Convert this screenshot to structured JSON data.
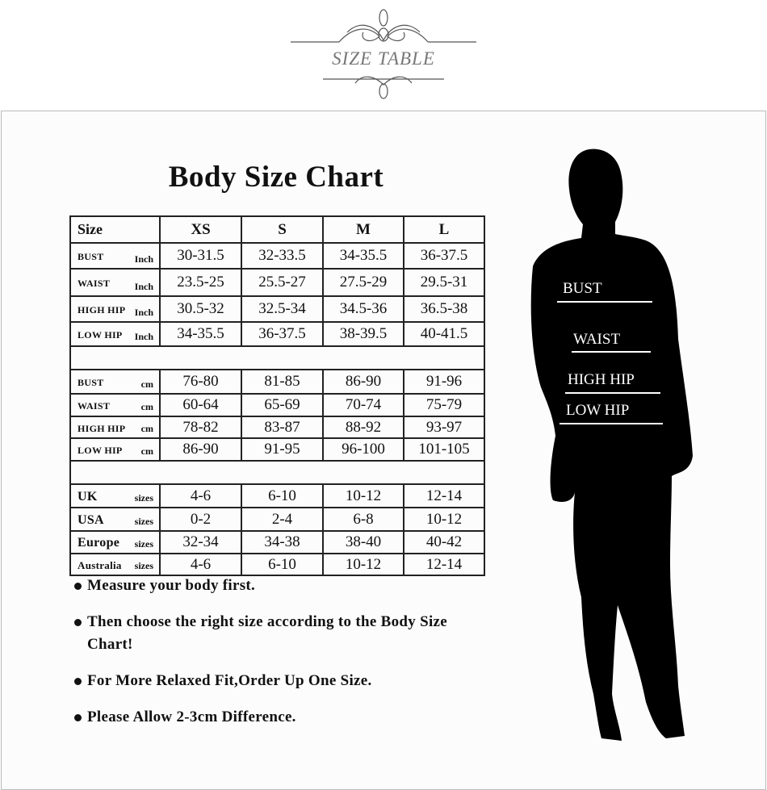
{
  "header": {
    "title": "SIZE TABLE"
  },
  "chart": {
    "title": "Body Size Chart",
    "columns": [
      "Size",
      "XS",
      "S",
      "M",
      "L"
    ],
    "groups": [
      {
        "rows": [
          {
            "label": "BUST",
            "unit": "Inch",
            "values": [
              "30-31.5",
              "32-33.5",
              "34-35.5",
              "36-37.5"
            ]
          },
          {
            "label": "WAIST",
            "unit": "Inch",
            "values": [
              "23.5-25",
              "25.5-27",
              "27.5-29",
              "29.5-31"
            ]
          },
          {
            "label": "HIGH HIP",
            "unit": "Inch",
            "values": [
              "30.5-32",
              "32.5-34",
              "34.5-36",
              "36.5-38"
            ]
          },
          {
            "label": "LOW HIP",
            "unit": "Inch",
            "values": [
              "34-35.5",
              "36-37.5",
              "38-39.5",
              "40-41.5"
            ]
          }
        ]
      },
      {
        "rows": [
          {
            "label": "BUST",
            "unit": "cm",
            "values": [
              "76-80",
              "81-85",
              "86-90",
              "91-96"
            ]
          },
          {
            "label": "WAIST",
            "unit": "cm",
            "values": [
              "60-64",
              "65-69",
              "70-74",
              "75-79"
            ]
          },
          {
            "label": "HIGH HIP",
            "unit": "cm",
            "values": [
              "78-82",
              "83-87",
              "88-92",
              "93-97"
            ]
          },
          {
            "label": "LOW HIP",
            "unit": "cm",
            "values": [
              "86-90",
              "91-95",
              "96-100",
              "101-105"
            ]
          }
        ]
      },
      {
        "big": true,
        "rows": [
          {
            "label": "UK",
            "unit": "sizes",
            "values": [
              "4-6",
              "6-10",
              "10-12",
              "12-14"
            ]
          },
          {
            "label": "USA",
            "unit": "sizes",
            "values": [
              "0-2",
              "2-4",
              "6-8",
              "10-12"
            ]
          },
          {
            "label": "Europe",
            "unit": "sizes",
            "values": [
              "32-34",
              "34-38",
              "38-40",
              "40-42"
            ]
          },
          {
            "label": "Australia",
            "unit": "sizes",
            "values": [
              "4-6",
              "6-10",
              "10-12",
              "12-14"
            ]
          }
        ]
      }
    ]
  },
  "notes": [
    "Measure your body first.",
    "Then choose the right size according to the Body Size Chart!",
    "For More Relaxed Fit,Order Up One Size.",
    "Please Allow 2-3cm Difference."
  ],
  "figure": {
    "labels": [
      "BUST",
      "WAIST",
      "HIGH HIP",
      "LOW HIP"
    ]
  }
}
